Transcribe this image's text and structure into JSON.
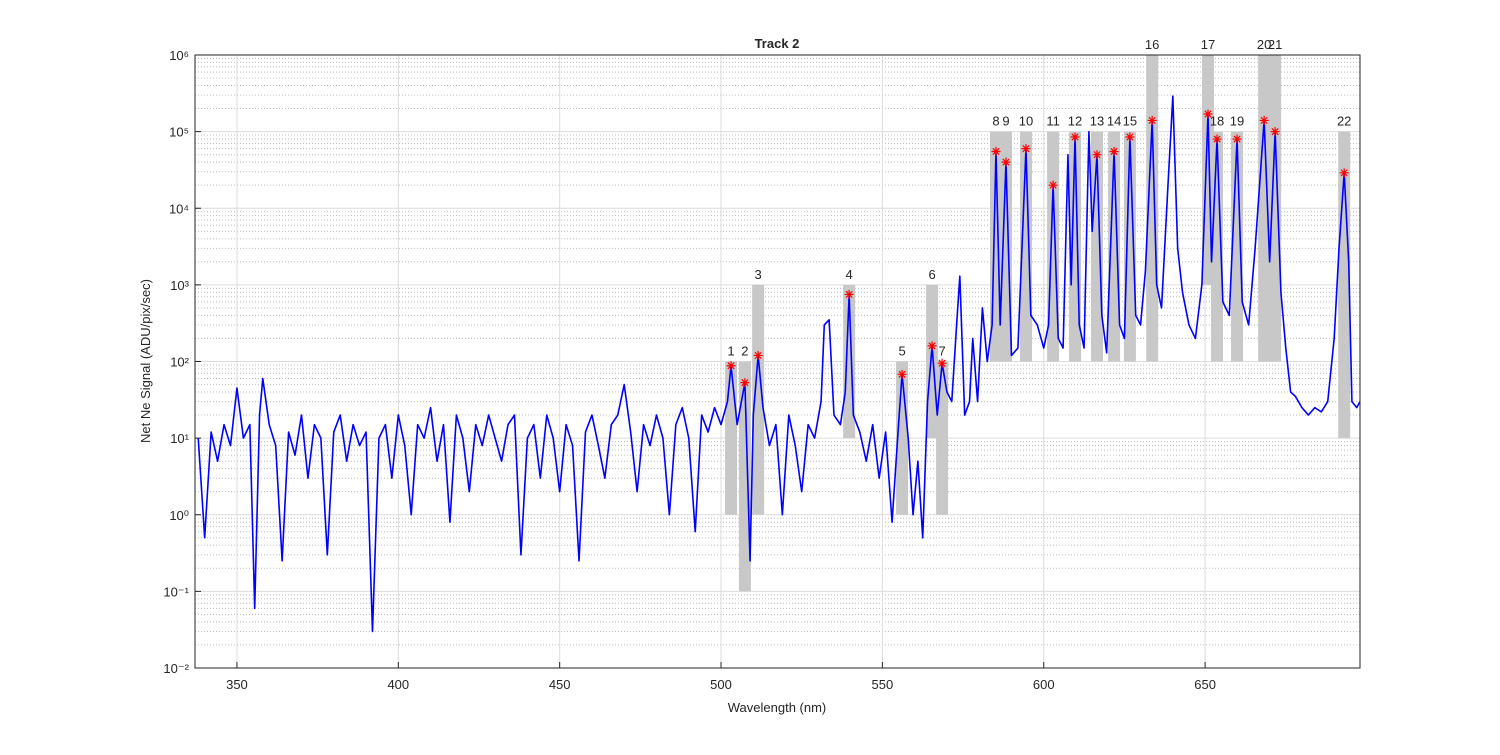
{
  "chart_data": {
    "type": "line",
    "title": "Track 2",
    "x_label": "Wavelength (nm)",
    "y_label": "Net Ne Signal (ADU/pix/sec)",
    "yscale": "log",
    "grid": true,
    "minor_grid": true,
    "xlim": [
      337,
      698
    ],
    "xticks": [
      350,
      400,
      450,
      500,
      550,
      600,
      650
    ],
    "ylim": [
      0.01,
      1000000
    ],
    "yticks": [
      {
        "value": 0.01,
        "label": "10⁻²"
      },
      {
        "value": 0.1,
        "label": "10⁻¹"
      },
      {
        "value": 1,
        "label": "10⁰"
      },
      {
        "value": 10,
        "label": "10¹"
      },
      {
        "value": 100,
        "label": "10²"
      },
      {
        "value": 1000,
        "label": "10³"
      },
      {
        "value": 10000,
        "label": "10⁴"
      },
      {
        "value": 100000,
        "label": "10⁵"
      },
      {
        "value": 1000000,
        "label": "10⁶"
      }
    ],
    "yminorticks": [
      0.02,
      0.03,
      0.04,
      0.05,
      0.06,
      0.07,
      0.08,
      0.09,
      0.2,
      0.3,
      0.4,
      0.5,
      0.6,
      0.7,
      0.8,
      0.9,
      2,
      3,
      4,
      5,
      6,
      7,
      8,
      9,
      20,
      30,
      40,
      50,
      60,
      70,
      80,
      90,
      200,
      300,
      400,
      500,
      600,
      700,
      800,
      900,
      2000,
      3000,
      4000,
      5000,
      6000,
      7000,
      8000,
      9000,
      20000,
      30000,
      40000,
      50000,
      60000,
      70000,
      80000,
      90000,
      200000,
      300000,
      400000,
      500000,
      600000,
      700000,
      800000,
      900000
    ],
    "series": [
      {
        "color": "#0000ff",
        "x": [
          338,
          340,
          342,
          344,
          346,
          348,
          350,
          352,
          354,
          355.5,
          357,
          358,
          360,
          362,
          364,
          366,
          368,
          370,
          372,
          374,
          376,
          378,
          380,
          382,
          384,
          386,
          388,
          390,
          392,
          394,
          396,
          398,
          400,
          402,
          404,
          406,
          408,
          410,
          412,
          414,
          416,
          418,
          420,
          422,
          424,
          426,
          428,
          430,
          432,
          434,
          436,
          438,
          440,
          442,
          444,
          446,
          448,
          450,
          452,
          454,
          456,
          458,
          460,
          462,
          464,
          466,
          468,
          470,
          472,
          474,
          476,
          478,
          480,
          482,
          484,
          486,
          488,
          490,
          492,
          494,
          496,
          498,
          500,
          502,
          503.1,
          505,
          507.4,
          509,
          510,
          511.5,
          513,
          515,
          517,
          519,
          521,
          523,
          525,
          527,
          529,
          531,
          532,
          533.5,
          535,
          537,
          538.5,
          539.7,
          541,
          543,
          545,
          547,
          549,
          551,
          553,
          555,
          556.1,
          558,
          559.5,
          561,
          562.5,
          564,
          565.4,
          567,
          568.5,
          570,
          571.5,
          573,
          574,
          575.5,
          577,
          578,
          579.5,
          581,
          582.5,
          584,
          585.2,
          586.5,
          588.3,
          590,
          592,
          594.5,
          596,
          598,
          600,
          601.5,
          602.9,
          604.5,
          606,
          607.5,
          608.5,
          609.7,
          611,
          612.5,
          614,
          615,
          616.5,
          618,
          619.5,
          621.8,
          623.5,
          625,
          626.7,
          628.5,
          630,
          631.5,
          633.6,
          635,
          636.5,
          638.5,
          640,
          641.5,
          643,
          645,
          647,
          649,
          650.9,
          652,
          653.7,
          655.5,
          657.5,
          659.9,
          661.5,
          663.5,
          665.5,
          668.3,
          670,
          671.7,
          673.5,
          675,
          676.5,
          678,
          680,
          682,
          684,
          686,
          688,
          690,
          691.5,
          693.1,
          694.5,
          695.5,
          697,
          698
        ],
        "values": [
          10,
          0.5,
          12,
          5,
          15,
          8,
          45,
          10,
          15,
          0.06,
          20,
          60,
          15,
          8,
          0.25,
          12,
          6,
          20,
          3,
          15,
          10,
          0.3,
          12,
          20,
          5,
          15,
          8,
          12,
          0.03,
          10,
          15,
          3,
          20,
          8,
          1,
          15,
          10,
          25,
          5,
          15,
          0.8,
          20,
          10,
          2,
          15,
          8,
          20,
          10,
          5,
          15,
          20,
          0.3,
          10,
          15,
          3,
          20,
          10,
          2,
          15,
          8,
          0.25,
          12,
          20,
          8,
          3,
          15,
          20,
          50,
          12,
          2,
          15,
          8,
          20,
          10,
          1,
          15,
          25,
          10,
          0.6,
          20,
          12,
          25,
          15,
          30,
          88,
          15,
          53,
          0.25,
          20,
          120,
          25,
          8,
          15,
          1,
          20,
          8,
          2,
          15,
          10,
          30,
          300,
          350,
          20,
          15,
          40,
          750,
          20,
          12,
          5,
          15,
          3,
          12,
          0.8,
          15,
          68,
          10,
          1,
          5,
          0.5,
          30,
          160,
          20,
          95,
          40,
          30,
          300,
          1300,
          20,
          30,
          200,
          30,
          500,
          100,
          300,
          55000,
          300,
          40000,
          120,
          150,
          60000,
          400,
          300,
          150,
          300,
          20000,
          200,
          150,
          50000,
          1000,
          85000,
          300,
          150,
          100000,
          5000,
          50000,
          400,
          130,
          55000,
          300,
          200,
          85000,
          400,
          300,
          1500,
          140000,
          1000,
          500,
          20000,
          290000,
          3000,
          800,
          300,
          200,
          1000,
          170000,
          2000,
          80000,
          600,
          400,
          80000,
          600,
          300,
          3000,
          140000,
          2000,
          100000,
          800,
          150,
          40,
          35,
          25,
          20,
          25,
          22,
          30,
          200,
          3000,
          29000,
          2000,
          30,
          25,
          30
        ]
      }
    ],
    "peaks": {
      "color": "#ff0000",
      "band_color": "#c8c8c8",
      "labels": [
        "1",
        "2",
        "3",
        "4",
        "5",
        "6",
        "7",
        "8",
        "9",
        "10",
        "11",
        "12",
        "13",
        "14",
        "15",
        "16",
        "17",
        "18",
        "19",
        "20",
        "21",
        "22"
      ],
      "x": [
        503.1,
        507.4,
        511.5,
        539.7,
        556.1,
        565.4,
        568.5,
        585.2,
        588.3,
        594.5,
        602.9,
        609.7,
        616.5,
        621.8,
        626.7,
        633.6,
        650.9,
        653.7,
        659.9,
        668.3,
        671.7,
        693.1
      ],
      "values": [
        88,
        53,
        120,
        750,
        68,
        160,
        95,
        55000,
        40000,
        60000,
        20000,
        85000,
        50000,
        55000,
        85000,
        140000,
        170000,
        80000,
        80000,
        140000,
        100000,
        29000
      ],
      "low": [
        1,
        0.1,
        1,
        10,
        1,
        10,
        1,
        100,
        100,
        100,
        100,
        100,
        100,
        100,
        100,
        100,
        1000,
        100,
        100,
        100,
        100,
        10
      ],
      "high": [
        100,
        100,
        1000,
        1000,
        100,
        1000,
        100,
        100000,
        100000,
        100000,
        100000,
        100000,
        100000,
        100000,
        100000,
        1000000,
        1000000,
        100000,
        100000,
        1000000,
        1000000,
        100000
      ]
    }
  }
}
